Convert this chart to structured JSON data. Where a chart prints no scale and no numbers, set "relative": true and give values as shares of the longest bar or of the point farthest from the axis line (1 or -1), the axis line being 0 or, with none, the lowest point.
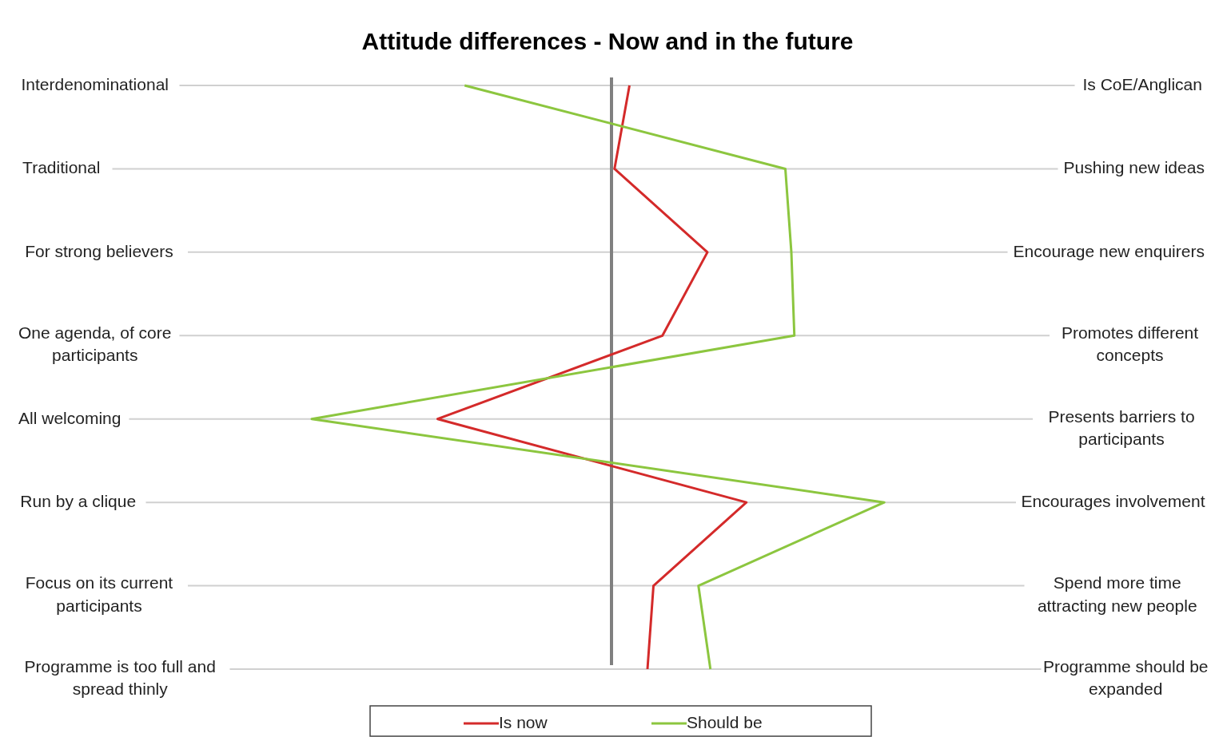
{
  "chart_data": {
    "type": "line",
    "orientation": "horizontal",
    "relative": true,
    "title": "Attitude differences - Now and in the future",
    "categories": [
      "Interdenominational",
      "Traditional",
      "For strong believers",
      "One agenda, of core\nparticipants",
      "All welcoming",
      "Run by a clique",
      "Focus on its current\nparticipants",
      "Programme is too full and\nspread thinly"
    ],
    "y2_categories": [
      "Is CoE/Anglican",
      "Pushing new ideas",
      "Encourage new enquirers",
      "Promotes different\nconcepts",
      "Presents barriers to\nparticipants",
      "Encourages involvement",
      "Spend more time\nattracting new people",
      "Programme should be\nexpanded"
    ],
    "series": [
      {
        "name": "Is now",
        "color": "#d42a2a",
        "values": [
          0.06,
          0.01,
          0.32,
          0.17,
          -0.58,
          0.45,
          0.14,
          0.12
        ]
      },
      {
        "name": "Should be",
        "color": "#8cc63f",
        "values": [
          -0.49,
          0.58,
          0.6,
          0.61,
          -1,
          0.91,
          0.29,
          0.33
        ]
      }
    ],
    "grid": true,
    "legend": "bottom",
    "marker": "none",
    "line_style": "solid"
  }
}
